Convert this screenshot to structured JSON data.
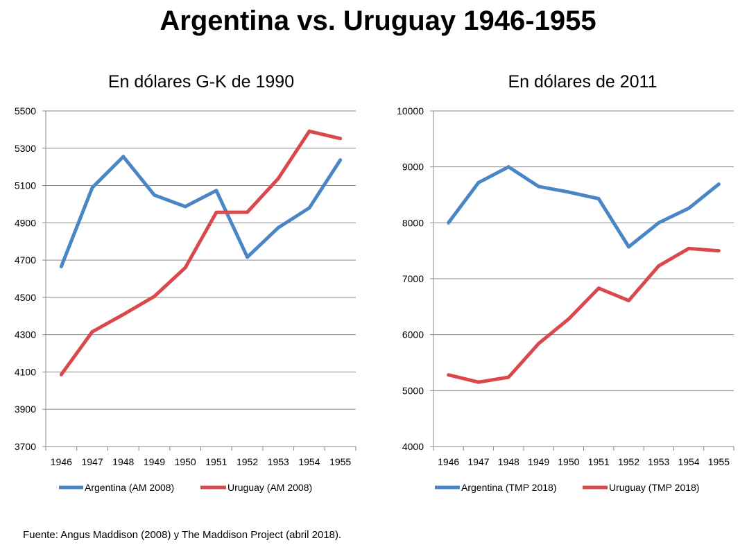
{
  "page_title": "Argentina vs. Uruguay 1946-1955",
  "footer": "Fuente: Angus Maddison (2008) y The Maddison Project (abril 2018).",
  "colors": {
    "argentina": "#4a86c6",
    "uruguay": "#d9484b",
    "grid": "#888888"
  },
  "chart_data": [
    {
      "type": "line",
      "title": "En dólares G-K de 1990",
      "xlabel": "",
      "ylabel": "",
      "categories": [
        "1946",
        "1947",
        "1948",
        "1949",
        "1950",
        "1951",
        "1952",
        "1953",
        "1954",
        "1955"
      ],
      "ylim": [
        3700,
        5500
      ],
      "yticks": [
        3700,
        3900,
        4100,
        4300,
        4500,
        4700,
        4900,
        5100,
        5300,
        5500
      ],
      "ytick_labels": [
        "3700",
        "3900",
        "4100",
        "4300",
        "4500",
        "4700",
        "4900",
        "5100",
        "5300",
        "5500"
      ],
      "grid": true,
      "legend": "bottom",
      "series": [
        {
          "name": "Argentina (AM 2008)",
          "color": "#4a86c6",
          "values": [
            4665,
            5089,
            5255,
            5049,
            4987,
            5073,
            4716,
            4874,
            4980,
            5237
          ]
        },
        {
          "name": "Uruguay (AM 2008)",
          "color": "#d9484b",
          "values": [
            4086,
            4316,
            4408,
            4505,
            4659,
            4956,
            4957,
            5138,
            5391,
            5352
          ]
        }
      ]
    },
    {
      "type": "line",
      "title": "En dólares de 2011",
      "xlabel": "",
      "ylabel": "",
      "categories": [
        "1946",
        "1947",
        "1948",
        "1949",
        "1950",
        "1951",
        "1952",
        "1953",
        "1954",
        "1955"
      ],
      "ylim": [
        4000,
        10000
      ],
      "yticks": [
        4000,
        5000,
        6000,
        7000,
        8000,
        9000,
        10000
      ],
      "ytick_labels": [
        "4000",
        "5000",
        "6000",
        "7000",
        "8000",
        "9000",
        "10000"
      ],
      "grid": true,
      "legend": "bottom",
      "series": [
        {
          "name": "Argentina (TMP 2018)",
          "color": "#4a86c6",
          "values": [
            8000,
            8720,
            9000,
            8650,
            8550,
            8430,
            7570,
            8000,
            8260,
            8690
          ]
        },
        {
          "name": "Uruguay (TMP 2018)",
          "color": "#d9484b",
          "values": [
            5280,
            5150,
            5240,
            5840,
            6280,
            6830,
            6610,
            7230,
            7540,
            7500
          ]
        }
      ]
    }
  ]
}
